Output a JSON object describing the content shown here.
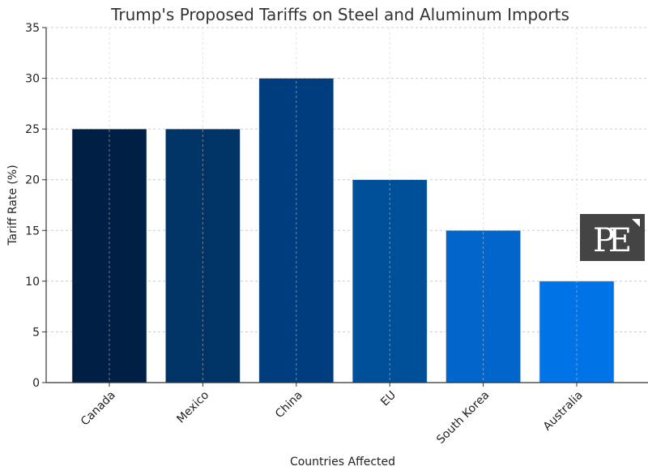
{
  "chart_data": {
    "type": "bar",
    "title": "Trump's Proposed Tariffs on Steel and Aluminum Imports",
    "xlabel": "Countries Affected",
    "ylabel": "Tariff Rate (%)",
    "categories": [
      "Canada",
      "Mexico",
      "China",
      "EU",
      "South Korea",
      "Australia"
    ],
    "values": [
      25,
      25,
      30,
      20,
      15,
      10
    ],
    "colors": [
      "#001f44",
      "#003366",
      "#003d7f",
      "#004f99",
      "#0066cc",
      "#0073e6"
    ],
    "ylim": [
      0,
      35
    ],
    "yticks": [
      0,
      5,
      10,
      15,
      20,
      25,
      30,
      35
    ],
    "grid": true,
    "legend": "none"
  },
  "watermark": {
    "text": "PE",
    "background": "#444444",
    "color": "#ffffff"
  }
}
